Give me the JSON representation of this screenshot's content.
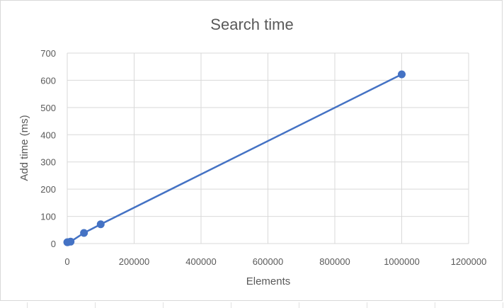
{
  "chart_data": {
    "type": "scatter",
    "title": "Search time",
    "xlabel": "Elements",
    "ylabel": "Add time (ms)",
    "xlim": [
      0,
      1200000
    ],
    "ylim": [
      0,
      700
    ],
    "x_ticks": [
      0,
      200000,
      400000,
      600000,
      800000,
      1000000,
      1200000
    ],
    "y_ticks": [
      0,
      100,
      200,
      300,
      400,
      500,
      600,
      700
    ],
    "grid": true,
    "line_connected": true,
    "series": [
      {
        "color": "#4472c4",
        "points": [
          {
            "x": 100,
            "y": 5
          },
          {
            "x": 1000,
            "y": 5
          },
          {
            "x": 10000,
            "y": 7
          },
          {
            "x": 50000,
            "y": 39
          },
          {
            "x": 100000,
            "y": 71
          },
          {
            "x": 1000000,
            "y": 622
          }
        ]
      }
    ]
  }
}
